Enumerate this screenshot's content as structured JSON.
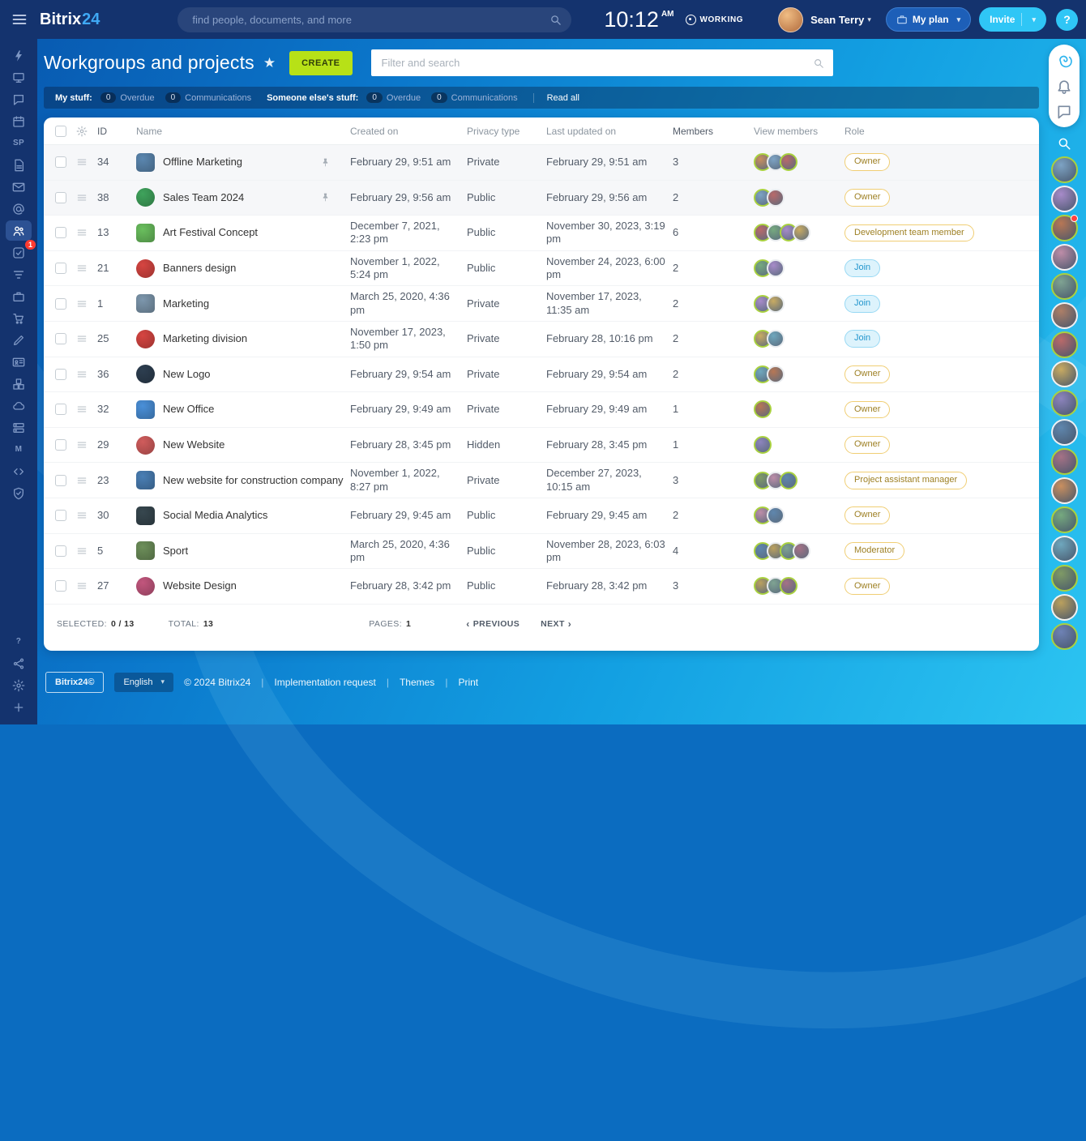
{
  "topbar": {
    "logo_main": "Bitrix",
    "logo_24": "24",
    "search_placeholder": "find people, documents, and more",
    "time": "10:12",
    "time_suffix": "AM",
    "status": "WORKING",
    "user_name": "Sean Terry",
    "my_plan_label": "My plan",
    "invite_label": "Invite",
    "help_label": "?"
  },
  "sidebar": {
    "items": [
      {
        "name": "live-feed",
        "icon": "lightning"
      },
      {
        "name": "workspace",
        "icon": "desktop"
      },
      {
        "name": "messenger",
        "icon": "chat"
      },
      {
        "name": "calendar",
        "icon": "calendar"
      },
      {
        "name": "sites-sp",
        "text": "SP"
      },
      {
        "name": "documents",
        "icon": "doc"
      },
      {
        "name": "mail",
        "icon": "mail"
      },
      {
        "name": "webmail",
        "icon": "atmail"
      },
      {
        "name": "workgroups",
        "icon": "people",
        "active": true
      },
      {
        "name": "tasks",
        "icon": "taskcheck",
        "badge": "1"
      },
      {
        "name": "crm",
        "icon": "funnel"
      },
      {
        "name": "market",
        "icon": "briefcase"
      },
      {
        "name": "sales",
        "icon": "cart"
      },
      {
        "name": "sites",
        "icon": "pen"
      },
      {
        "name": "hr",
        "icon": "idcard"
      },
      {
        "name": "inventory",
        "icon": "boxes"
      },
      {
        "name": "cloud-storage",
        "icon": "cloud"
      },
      {
        "name": "automation",
        "icon": "stack"
      },
      {
        "name": "marketing",
        "text": "M"
      },
      {
        "name": "devops",
        "icon": "code"
      },
      {
        "name": "compliance",
        "icon": "shield"
      }
    ],
    "bottom_items": [
      {
        "name": "help",
        "text": "?"
      },
      {
        "name": "sitemap",
        "icon": "share"
      },
      {
        "name": "settings",
        "icon": "gear"
      },
      {
        "name": "add-more",
        "icon": "plus"
      }
    ]
  },
  "page": {
    "title": "Workgroups and projects",
    "create_label": "CREATE",
    "filter_placeholder": "Filter and search"
  },
  "filters": {
    "group1_label": "My stuff:",
    "group1_chips": [
      {
        "count": "0",
        "label": "Overdue"
      },
      {
        "count": "0",
        "label": "Communications"
      }
    ],
    "group2_label": "Someone else's stuff:",
    "group2_chips": [
      {
        "count": "0",
        "label": "Overdue"
      },
      {
        "count": "0",
        "label": "Communications"
      }
    ],
    "read_all": "Read all"
  },
  "table": {
    "columns": {
      "id": "ID",
      "name": "Name",
      "created": "Created on",
      "privacy": "Privacy type",
      "updated": "Last updated on",
      "members": "Members",
      "view": "View members",
      "role": "Role"
    },
    "rows": [
      {
        "id": "34",
        "name": "Offline Marketing",
        "pinned": true,
        "shape": "square",
        "color": "#5b87b0",
        "created": "February 29, 9:51 am",
        "privacy": "Private",
        "updated": "February 29, 9:51 am",
        "members": "3",
        "role": "Owner",
        "role_type": "owner"
      },
      {
        "id": "38",
        "name": "Sales Team 2024",
        "pinned": true,
        "shape": "circle",
        "color": "#3fa35c",
        "created": "February 29, 9:56 am",
        "privacy": "Public",
        "updated": "February 29, 9:56 am",
        "members": "2",
        "role": "Owner",
        "role_type": "owner"
      },
      {
        "id": "13",
        "name": "Art Festival Concept",
        "shape": "square",
        "color": "#6abf5e",
        "created": "December 7, 2021, 2:23 pm",
        "privacy": "Public",
        "updated": "November 30, 2023, 3:19 pm",
        "members": "6",
        "role": "Development team member",
        "role_type": "owner"
      },
      {
        "id": "21",
        "name": "Banners design",
        "shape": "circle",
        "color": "#d64541",
        "created": "November 1, 2022, 5:24 pm",
        "privacy": "Public",
        "updated": "November 24, 2023, 6:00 pm",
        "members": "2",
        "role": "Join",
        "role_type": "join"
      },
      {
        "id": "1",
        "name": "Marketing",
        "shape": "square",
        "color": "#7d97ad",
        "created": "March 25, 2020, 4:36 pm",
        "privacy": "Private",
        "updated": "November 17, 2023, 11:35 am",
        "members": "2",
        "role": "Join",
        "role_type": "join"
      },
      {
        "id": "25",
        "name": "Marketing division",
        "shape": "circle",
        "color": "#d64541",
        "created": "November 17, 2023, 1:50 pm",
        "privacy": "Private",
        "updated": "February 28, 10:16 pm",
        "members": "2",
        "role": "Join",
        "role_type": "join"
      },
      {
        "id": "36",
        "name": "New Logo",
        "shape": "circle",
        "color": "#2d3e50",
        "created": "February 29, 9:54 am",
        "privacy": "Private",
        "updated": "February 29, 9:54 am",
        "members": "2",
        "role": "Owner",
        "role_type": "owner"
      },
      {
        "id": "32",
        "name": "New Office",
        "shape": "square",
        "color": "#4a90d9",
        "created": "February 29, 9:49 am",
        "privacy": "Private",
        "updated": "February 29, 9:49 am",
        "members": "1",
        "role": "Owner",
        "role_type": "owner"
      },
      {
        "id": "29",
        "name": "New Website",
        "shape": "circle",
        "color": "#d05c5c",
        "created": "February 28, 3:45 pm",
        "privacy": "Hidden",
        "updated": "February 28, 3:45 pm",
        "members": "1",
        "role": "Owner",
        "role_type": "owner"
      },
      {
        "id": "23",
        "name": "New website for construction company",
        "shape": "square",
        "color": "#4a7fb5",
        "created": "November 1, 2022, 8:27 pm",
        "privacy": "Private",
        "updated": "December 27, 2023, 10:15 am",
        "members": "3",
        "role": "Project assistant manager",
        "role_type": "owner"
      },
      {
        "id": "30",
        "name": "Social Media Analytics",
        "shape": "square",
        "color": "#37474f",
        "created": "February 29, 9:45 am",
        "privacy": "Public",
        "updated": "February 29, 9:45 am",
        "members": "2",
        "role": "Owner",
        "role_type": "owner"
      },
      {
        "id": "5",
        "name": "Sport",
        "shape": "square",
        "color": "#6d8f5a",
        "created": "March 25, 2020, 4:36 pm",
        "privacy": "Public",
        "updated": "November 28, 2023, 6:03 pm",
        "members": "4",
        "role": "Moderator",
        "role_type": "owner"
      },
      {
        "id": "27",
        "name": "Website Design",
        "shape": "circle",
        "color": "#c2567d",
        "created": "February 28, 3:42 pm",
        "privacy": "Public",
        "updated": "February 28, 3:42 pm",
        "members": "3",
        "role": "Owner",
        "role_type": "owner"
      }
    ]
  },
  "summary": {
    "selected_label": "Selected:",
    "selected_value": "0 / 13",
    "total_label": "Total:",
    "total_value": "13",
    "pages_label": "Pages:",
    "pages_value": "1",
    "prev_label": "Previous",
    "next_label": "Next"
  },
  "footer": {
    "brand": "Bitrix24©",
    "language": "English",
    "copyright": "© 2024 Bitrix24",
    "links": [
      "Implementation request",
      "Themes",
      "Print"
    ]
  },
  "right_rail": {
    "avatar_count": 17,
    "badge_index": 2
  },
  "colors": {
    "accent_green": "#b7e117",
    "accent_cyan": "#2fc6f6",
    "topbar_navy": "#14336e",
    "owner_badge_border": "#f0ce74",
    "join_blue": "#2396cd",
    "avatar_ring_green": "#a9d13f"
  },
  "avatar_palette": [
    "#c98f5f",
    "#7da3c4",
    "#b96a6a",
    "#76a97f",
    "#a78bc9",
    "#c9ab62",
    "#6fa7bd",
    "#b77755",
    "#8d84bd",
    "#7f9a66",
    "#bd8da8",
    "#5f86ad",
    "#baa05e",
    "#7fa392",
    "#a57286",
    "#6e82b5",
    "#ad7f68"
  ]
}
